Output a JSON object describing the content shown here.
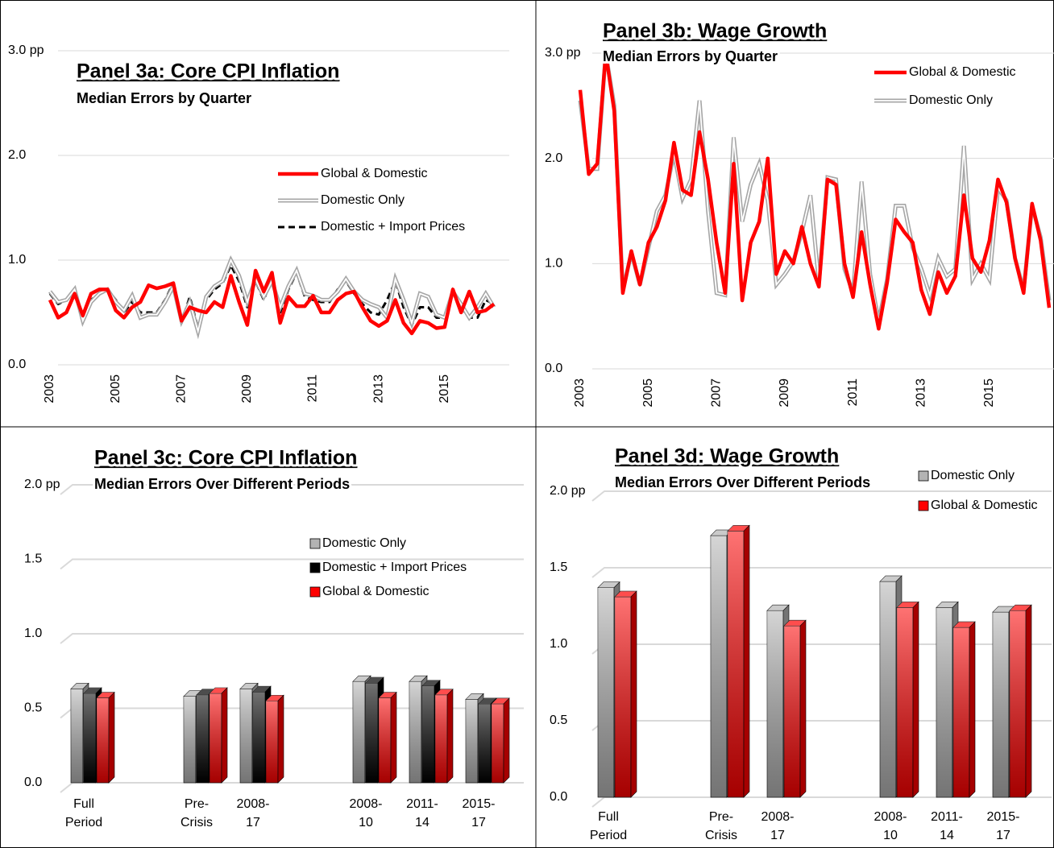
{
  "chart_data": [
    {
      "type": "line",
      "title": "Panel 3a: Core CPI Inflation",
      "subtitle": "Median Errors by Quarter",
      "x": [
        2003,
        2003.25,
        2003.5,
        2003.75,
        2004,
        2004.25,
        2004.5,
        2004.75,
        2005,
        2005.25,
        2005.5,
        2005.75,
        2006,
        2006.25,
        2006.5,
        2006.75,
        2007,
        2007.25,
        2007.5,
        2007.75,
        2008,
        2008.25,
        2008.5,
        2008.75,
        2009,
        2009.25,
        2009.5,
        2009.75,
        2010,
        2010.25,
        2010.5,
        2010.75,
        2011,
        2011.25,
        2011.5,
        2011.75,
        2012,
        2012.25,
        2012.5,
        2012.75,
        2013,
        2013.25,
        2013.5,
        2013.75,
        2014,
        2014.25,
        2014.5,
        2014.75,
        2015,
        2015.25,
        2015.5,
        2015.75,
        2016,
        2016.25,
        2016.5
      ],
      "xlim": [
        2003,
        2016.5
      ],
      "xticks": [
        2003,
        2005,
        2007,
        2009,
        2011,
        2013,
        2015
      ],
      "ylim": [
        0,
        3
      ],
      "yticks": [
        {
          "value": 0,
          "label": "0.0"
        },
        {
          "value": 1,
          "label": "1.0"
        },
        {
          "value": 2,
          "label": "2.0"
        },
        {
          "value": 3,
          "label": "3.0 pp"
        }
      ],
      "grid": true,
      "series": [
        {
          "name": "Global & Domestic",
          "color": "#ff0000",
          "line_style": "solid",
          "values": [
            0.62,
            0.45,
            0.5,
            0.68,
            0.47,
            0.68,
            0.72,
            0.72,
            0.52,
            0.45,
            0.55,
            0.6,
            0.76,
            0.73,
            0.75,
            0.78,
            0.42,
            0.55,
            0.52,
            0.5,
            0.6,
            0.55,
            0.85,
            0.6,
            0.38,
            0.9,
            0.7,
            0.88,
            0.4,
            0.65,
            0.56,
            0.56,
            0.66,
            0.5,
            0.5,
            0.62,
            0.68,
            0.7,
            0.55,
            0.42,
            0.37,
            0.42,
            0.62,
            0.4,
            0.3,
            0.42,
            0.4,
            0.35,
            0.36,
            0.72,
            0.5,
            0.7,
            0.5,
            0.52,
            0.58
          ]
        },
        {
          "name": "Domestic Only",
          "color": "#a6a6a6",
          "line_style": "double",
          "values": [
            0.7,
            0.6,
            0.62,
            0.72,
            0.42,
            0.6,
            0.68,
            0.72,
            0.6,
            0.52,
            0.66,
            0.45,
            0.48,
            0.48,
            0.6,
            0.75,
            0.42,
            0.6,
            0.32,
            0.65,
            0.75,
            0.8,
            1.0,
            0.85,
            0.6,
            0.82,
            0.65,
            0.8,
            0.55,
            0.75,
            0.9,
            0.68,
            0.66,
            0.62,
            0.62,
            0.7,
            0.82,
            0.7,
            0.62,
            0.58,
            0.55,
            0.45,
            0.82,
            0.62,
            0.4,
            0.68,
            0.65,
            0.48,
            0.45,
            0.7,
            0.58,
            0.45,
            0.55,
            0.68,
            0.55
          ]
        },
        {
          "name": "Domestic + Import Prices",
          "color": "#000000",
          "line_style": "dashed",
          "values": [
            0.68,
            0.58,
            0.62,
            0.7,
            0.42,
            0.62,
            0.68,
            0.72,
            0.62,
            0.5,
            0.6,
            0.5,
            0.5,
            0.5,
            0.62,
            0.78,
            0.4,
            0.65,
            0.35,
            0.62,
            0.72,
            0.78,
            0.95,
            0.8,
            0.55,
            0.8,
            0.62,
            0.82,
            0.5,
            0.72,
            0.88,
            0.65,
            0.62,
            0.6,
            0.6,
            0.72,
            0.8,
            0.68,
            0.58,
            0.5,
            0.48,
            0.62,
            0.8,
            0.55,
            0.38,
            0.55,
            0.55,
            0.45,
            0.45,
            0.68,
            0.55,
            0.45,
            0.45,
            0.62,
            0.58
          ]
        }
      ]
    },
    {
      "type": "line",
      "title": "Panel 3b: Wage Growth",
      "subtitle": "Median Errors by Quarter",
      "x": [
        2003,
        2003.25,
        2003.5,
        2003.75,
        2004,
        2004.25,
        2004.5,
        2004.75,
        2005,
        2005.25,
        2005.5,
        2005.75,
        2006,
        2006.25,
        2006.5,
        2006.75,
        2007,
        2007.25,
        2007.5,
        2007.75,
        2008,
        2008.25,
        2008.5,
        2008.75,
        2009,
        2009.25,
        2009.5,
        2009.75,
        2010,
        2010.25,
        2010.5,
        2010.75,
        2011,
        2011.25,
        2011.5,
        2011.75,
        2012,
        2012.25,
        2012.5,
        2012.75,
        2013,
        2013.25,
        2013.5,
        2013.75,
        2014,
        2014.25,
        2014.5,
        2014.75,
        2015,
        2015.25,
        2015.5,
        2015.75,
        2016,
        2016.25,
        2016.5,
        2016.75
      ],
      "xlim": [
        2003,
        2016.75
      ],
      "xticks": [
        2003,
        2005,
        2007,
        2009,
        2011,
        2013,
        2015
      ],
      "ylim": [
        0,
        3
      ],
      "yticks": [
        {
          "value": 0,
          "label": "0.0"
        },
        {
          "value": 1,
          "label": "1.0"
        },
        {
          "value": 2,
          "label": "2.0"
        },
        {
          "value": 3,
          "label": "3.0 pp"
        }
      ],
      "grid": true,
      "series": [
        {
          "name": "Global & Domestic",
          "color": "#ff0000",
          "line_style": "solid",
          "values": [
            2.65,
            1.85,
            1.95,
            3.0,
            2.45,
            0.72,
            1.12,
            0.8,
            1.2,
            1.35,
            1.6,
            2.15,
            1.7,
            1.65,
            2.25,
            1.8,
            1.2,
            0.72,
            1.95,
            0.65,
            1.2,
            1.4,
            2.0,
            0.9,
            1.12,
            1.0,
            1.35,
            1.0,
            0.78,
            1.8,
            1.75,
            1.0,
            0.68,
            1.3,
            0.8,
            0.38,
            0.82,
            1.42,
            1.3,
            1.2,
            0.75,
            0.52,
            0.92,
            0.72,
            0.88,
            1.65,
            1.05,
            0.92,
            1.22,
            1.8,
            1.58,
            1.05,
            0.72,
            1.57,
            1.22,
            0.58
          ]
        },
        {
          "name": "Domestic Only",
          "color": "#a6a6a6",
          "line_style": "double",
          "values": [
            2.55,
            1.9,
            1.9,
            3.0,
            2.5,
            0.75,
            1.1,
            0.8,
            1.15,
            1.5,
            1.65,
            2.05,
            1.62,
            1.8,
            2.55,
            1.5,
            0.72,
            0.7,
            2.2,
            1.4,
            1.75,
            1.95,
            1.6,
            0.8,
            0.9,
            1.02,
            1.3,
            1.65,
            0.82,
            1.82,
            1.8,
            0.95,
            0.72,
            1.78,
            0.9,
            0.45,
            0.85,
            1.55,
            1.55,
            1.15,
            0.95,
            0.7,
            1.05,
            0.88,
            0.95,
            2.12,
            0.85,
            1.0,
            0.85,
            1.72,
            1.6,
            1.05,
            0.75,
            1.55,
            1.25,
            0.65
          ]
        }
      ]
    },
    {
      "type": "bar",
      "title": "Panel 3c: Core CPI Inflation",
      "subtitle": "Median Errors Over Different Periods",
      "categories": [
        "Full\nPeriod",
        null,
        "Pre-\nCrisis",
        "2008-\n17",
        null,
        "2008-\n10",
        "2011-\n14",
        "2015-\n17"
      ],
      "ylim": [
        0,
        2
      ],
      "yticks": [
        {
          "value": 0,
          "label": "0.0"
        },
        0.5,
        {
          "value": 1,
          "label": "1.0"
        },
        1.5,
        {
          "value": 2,
          "label": "2.0 pp"
        }
      ],
      "grid": true,
      "series": [
        {
          "name": "Domestic Only",
          "color": "#b3b3b3",
          "values": [
            0.63,
            null,
            0.58,
            0.63,
            null,
            0.68,
            0.68,
            0.56
          ]
        },
        {
          "name": "Domestic + Import Prices",
          "color": "#000000",
          "values": [
            0.6,
            null,
            0.59,
            0.61,
            null,
            0.67,
            0.65,
            0.53
          ]
        },
        {
          "name": "Global & Domestic",
          "color": "#ff0000",
          "values": [
            0.57,
            null,
            0.6,
            0.55,
            null,
            0.57,
            0.59,
            0.53
          ]
        }
      ]
    },
    {
      "type": "bar",
      "title": "Panel 3d: Wage Growth",
      "subtitle": "Median Errors Over Different Periods",
      "categories": [
        "Full\nPeriod",
        null,
        "Pre-\nCrisis",
        "2008-\n17",
        null,
        "2008-\n10",
        "2011-\n14",
        "2015-\n17"
      ],
      "ylim": [
        0,
        2
      ],
      "yticks": [
        {
          "value": 0,
          "label": "0.0"
        },
        0.5,
        {
          "value": 1,
          "label": "1.0"
        },
        1.5,
        {
          "value": 2,
          "label": "2.0 pp"
        }
      ],
      "grid": true,
      "series": [
        {
          "name": "Domestic Only",
          "color": "#b3b3b3",
          "values": [
            1.37,
            null,
            1.71,
            1.22,
            null,
            1.41,
            1.24,
            1.21
          ]
        },
        {
          "name": "Global & Domestic",
          "color": "#ff0000",
          "values": [
            1.31,
            null,
            1.74,
            1.12,
            null,
            1.24,
            1.11,
            1.22
          ]
        }
      ]
    }
  ]
}
